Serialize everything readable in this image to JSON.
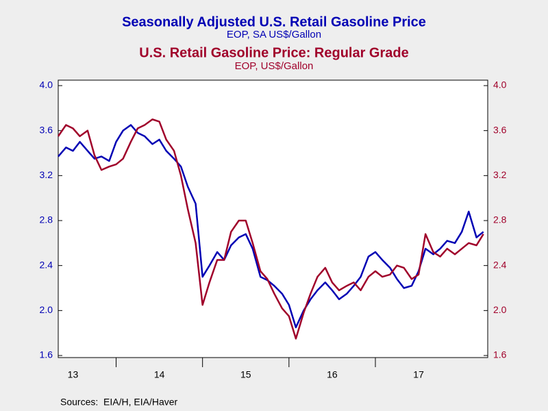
{
  "chart_data": {
    "type": "line",
    "source": "Sources:  EIA/H, EIA/Haver",
    "x": [
      2013.33,
      2013.42,
      2013.5,
      2013.58,
      2013.67,
      2013.75,
      2013.83,
      2013.92,
      2014,
      2014.08,
      2014.17,
      2014.25,
      2014.33,
      2014.42,
      2014.5,
      2014.58,
      2014.67,
      2014.75,
      2014.83,
      2014.92,
      2015,
      2015.08,
      2015.17,
      2015.25,
      2015.33,
      2015.42,
      2015.5,
      2015.58,
      2015.67,
      2015.75,
      2015.83,
      2015.92,
      2016,
      2016.08,
      2016.17,
      2016.25,
      2016.33,
      2016.42,
      2016.5,
      2016.58,
      2016.67,
      2016.75,
      2016.83,
      2016.92,
      2017,
      2017.08,
      2017.17,
      2017.25,
      2017.33,
      2017.42,
      2017.5,
      2017.58,
      2017.67,
      2017.75,
      2017.83,
      2017.92,
      2018,
      2018.08,
      2018.17,
      2018.25
    ],
    "series": [
      {
        "name": "Seasonally Adjusted U.S. Retail Gasoline Price",
        "subtitle": "EOP, SA US$/Gallon",
        "color": "#0000b4",
        "axis": "y",
        "values": [
          3.37,
          3.45,
          3.42,
          3.5,
          3.42,
          3.35,
          3.37,
          3.33,
          3.5,
          3.6,
          3.65,
          3.58,
          3.55,
          3.48,
          3.52,
          3.42,
          3.35,
          3.28,
          3.1,
          2.95,
          2.3,
          2.4,
          2.52,
          2.45,
          2.58,
          2.65,
          2.68,
          2.55,
          2.3,
          2.27,
          2.22,
          2.15,
          2.05,
          1.85,
          2.0,
          2.1,
          2.18,
          2.25,
          2.18,
          2.1,
          2.15,
          2.22,
          2.3,
          2.48,
          2.52,
          2.45,
          2.38,
          2.28,
          2.2,
          2.22,
          2.35,
          2.55,
          2.5,
          2.55,
          2.62,
          2.6,
          2.7,
          2.88,
          2.65,
          2.7
        ]
      },
      {
        "name": "U.S. Retail Gasoline Price: Regular Grade",
        "subtitle": "EOP, US$/Gallon",
        "color": "#a0002a",
        "axis": "y2",
        "values": [
          3.55,
          3.65,
          3.62,
          3.55,
          3.6,
          3.38,
          3.25,
          3.28,
          3.3,
          3.35,
          3.5,
          3.62,
          3.65,
          3.7,
          3.68,
          3.52,
          3.42,
          3.2,
          2.9,
          2.6,
          2.05,
          2.25,
          2.45,
          2.45,
          2.7,
          2.8,
          2.8,
          2.6,
          2.35,
          2.28,
          2.15,
          2.02,
          1.95,
          1.75,
          1.98,
          2.15,
          2.3,
          2.38,
          2.25,
          2.18,
          2.22,
          2.25,
          2.18,
          2.3,
          2.35,
          2.3,
          2.32,
          2.4,
          2.38,
          2.28,
          2.32,
          2.68,
          2.52,
          2.48,
          2.55,
          2.5,
          2.55,
          2.6,
          2.58,
          2.68
        ]
      }
    ],
    "xlim": [
      2013.33,
      2018.3
    ],
    "xticks": [
      {
        "value": 2013.5,
        "label": "13"
      },
      {
        "value": 2014.5,
        "label": "14"
      },
      {
        "value": 2015.5,
        "label": "15"
      },
      {
        "value": 2016.5,
        "label": "16"
      },
      {
        "value": 2017.5,
        "label": "17"
      }
    ],
    "ylim": [
      1.6,
      4.0
    ],
    "yticks": [
      {
        "value": 1.6,
        "label": "1.6"
      },
      {
        "value": 2.0,
        "label": "2.0"
      },
      {
        "value": 2.4,
        "label": "2.4"
      },
      {
        "value": 2.8,
        "label": "2.8"
      },
      {
        "value": 3.2,
        "label": "3.2"
      },
      {
        "value": 3.6,
        "label": "3.6"
      },
      {
        "value": 4.0,
        "label": "4.0"
      }
    ],
    "y2lim": [
      1.6,
      4.0
    ],
    "y2ticks": [
      {
        "value": 1.6,
        "label": "1.6"
      },
      {
        "value": 2.0,
        "label": "2.0"
      },
      {
        "value": 2.4,
        "label": "2.4"
      },
      {
        "value": 2.8,
        "label": "2.8"
      },
      {
        "value": 3.2,
        "label": "3.2"
      },
      {
        "value": 3.6,
        "label": "3.6"
      },
      {
        "value": 4.0,
        "label": "4.0"
      }
    ]
  }
}
